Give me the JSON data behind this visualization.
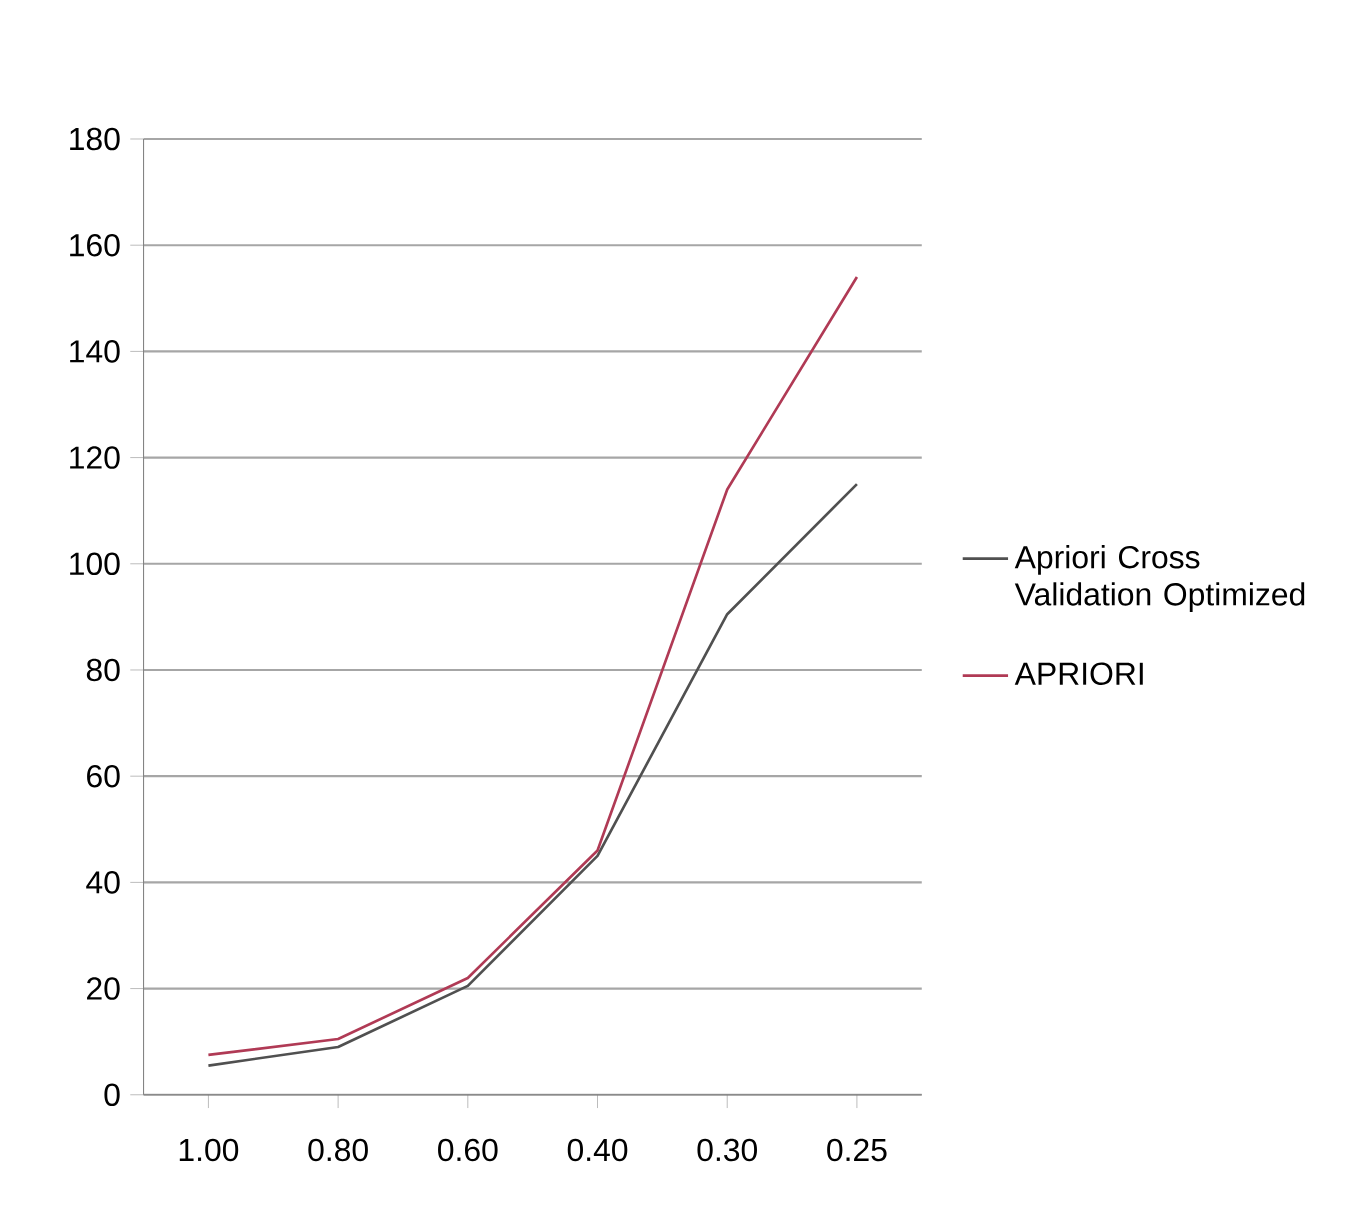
{
  "chart_data": {
    "type": "line",
    "categories": [
      "1.00",
      "0.80",
      "0.60",
      "0.40",
      "0.30",
      "0.25"
    ],
    "series": [
      {
        "name": "Apriori Cross Validation Optimized",
        "color": "#505050",
        "values": [
          5.5,
          9,
          20.5,
          45,
          90.5,
          115
        ]
      },
      {
        "name": "APRIORI",
        "color": "#b03a55",
        "values": [
          7.5,
          10.5,
          22,
          46,
          114,
          154
        ]
      }
    ],
    "ylim": [
      0,
      180
    ],
    "yticks": [
      0,
      20,
      40,
      60,
      80,
      100,
      120,
      140,
      160,
      180
    ],
    "grid": "y",
    "legend": "right",
    "marker": "none",
    "line_style": "solid"
  }
}
